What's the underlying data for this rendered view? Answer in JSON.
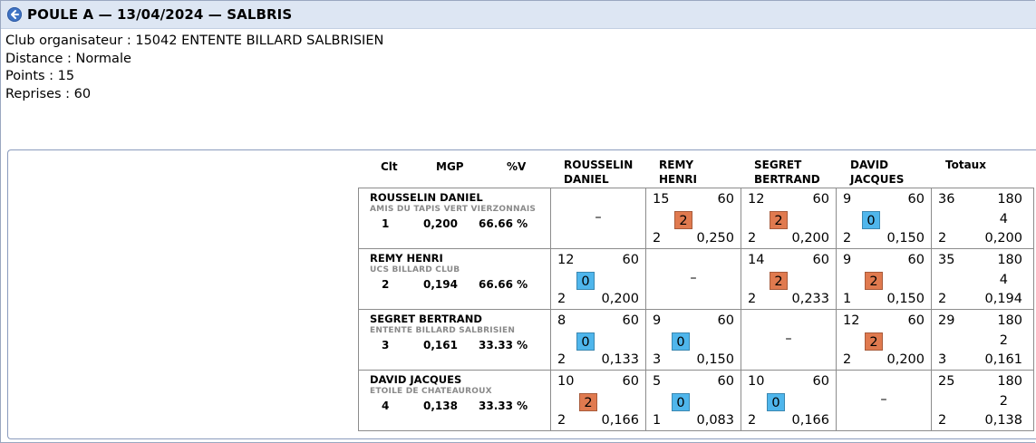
{
  "title": "POULE A — 13/04/2024 — SALBRIS",
  "info": [
    "Club organisateur : 15042 ENTENTE BILLARD SALBRISIEN",
    "Distance : Normale",
    "Points : 15",
    "Reprises : 60"
  ],
  "headers": {
    "clt": "Clt",
    "mgp": "MGP",
    "pv": "%V",
    "opponents": [
      [
        "ROUSSELIN",
        "DANIEL"
      ],
      [
        "REMY",
        "HENRI"
      ],
      [
        "SEGRET",
        "BERTRAND"
      ],
      [
        "DAVID",
        "JACQUES"
      ]
    ],
    "totaux": "Totaux"
  },
  "dash": "–",
  "rows": [
    {
      "name": "ROUSSELIN DANIEL",
      "club": "AMIS DU TAPIS VERT VIERZONNAIS",
      "clt": "1",
      "mgp": "0,200",
      "pv": "66.66 %",
      "cells": [
        null,
        {
          "pts": "15",
          "rep": "60",
          "mp": "2",
          "ser": "2",
          "moy": "0,250"
        },
        {
          "pts": "12",
          "rep": "60",
          "mp": "2",
          "ser": "2",
          "moy": "0,200"
        },
        {
          "pts": "9",
          "rep": "60",
          "mp": "0",
          "ser": "2",
          "moy": "0,150"
        }
      ],
      "total": {
        "pts": "36",
        "rep": "180",
        "mp": "4",
        "ser": "2",
        "moy": "0,200"
      }
    },
    {
      "name": "REMY HENRI",
      "club": "UCS BILLARD CLUB",
      "clt": "2",
      "mgp": "0,194",
      "pv": "66.66 %",
      "cells": [
        {
          "pts": "12",
          "rep": "60",
          "mp": "0",
          "ser": "2",
          "moy": "0,200"
        },
        null,
        {
          "pts": "14",
          "rep": "60",
          "mp": "2",
          "ser": "2",
          "moy": "0,233"
        },
        {
          "pts": "9",
          "rep": "60",
          "mp": "2",
          "ser": "1",
          "moy": "0,150"
        }
      ],
      "total": {
        "pts": "35",
        "rep": "180",
        "mp": "4",
        "ser": "2",
        "moy": "0,194"
      }
    },
    {
      "name": "SEGRET BERTRAND",
      "club": "ENTENTE BILLARD SALBRISIEN",
      "clt": "3",
      "mgp": "0,161",
      "pv": "33.33 %",
      "cells": [
        {
          "pts": "8",
          "rep": "60",
          "mp": "0",
          "ser": "2",
          "moy": "0,133"
        },
        {
          "pts": "9",
          "rep": "60",
          "mp": "0",
          "ser": "3",
          "moy": "0,150"
        },
        null,
        {
          "pts": "12",
          "rep": "60",
          "mp": "2",
          "ser": "2",
          "moy": "0,200"
        }
      ],
      "total": {
        "pts": "29",
        "rep": "180",
        "mp": "2",
        "ser": "3",
        "moy": "0,161"
      }
    },
    {
      "name": "DAVID JACQUES",
      "club": "ETOILE DE CHATEAUROUX",
      "clt": "4",
      "mgp": "0,138",
      "pv": "33.33 %",
      "cells": [
        {
          "pts": "10",
          "rep": "60",
          "mp": "2",
          "ser": "2",
          "moy": "0,166"
        },
        {
          "pts": "5",
          "rep": "60",
          "mp": "0",
          "ser": "1",
          "moy": "0,083"
        },
        {
          "pts": "10",
          "rep": "60",
          "mp": "0",
          "ser": "2",
          "moy": "0,166"
        },
        null
      ],
      "total": {
        "pts": "25",
        "rep": "180",
        "mp": "2",
        "ser": "2",
        "moy": "0,138"
      }
    }
  ],
  "colors": {
    "win": "#e07a4f",
    "loss": "#4fb6ec"
  }
}
